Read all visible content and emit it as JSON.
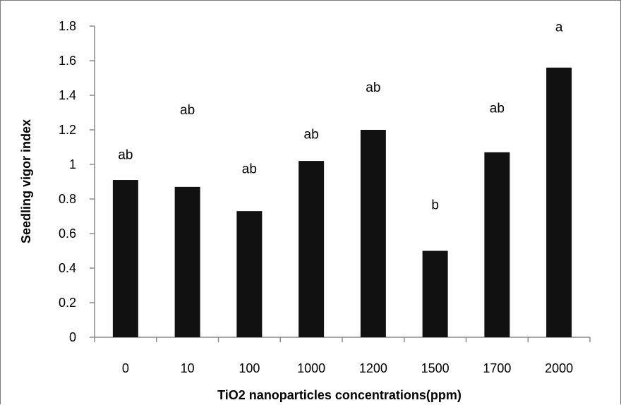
{
  "chart_data": {
    "type": "bar",
    "title": "",
    "xlabel": "TiO2 nanoparticles concentrations(ppm)",
    "ylabel": "Seedling vigor index",
    "categories": [
      "0",
      "10",
      "100",
      "1000",
      "1200",
      "1500",
      "1700",
      "2000"
    ],
    "values": [
      0.91,
      0.87,
      0.73,
      1.02,
      1.2,
      0.5,
      1.07,
      1.56
    ],
    "annotations": [
      "ab",
      "ab",
      "ab",
      "ab",
      "ab",
      "b",
      "ab",
      "a"
    ],
    "annotation_values": [
      1.03,
      1.29,
      0.95,
      1.15,
      1.42,
      0.74,
      1.3,
      1.77
    ],
    "ylim": [
      0,
      1.8
    ],
    "yticks": [
      "0",
      "0.2",
      "0.4",
      "0.6",
      "0.8",
      "1",
      "1.2",
      "1.4",
      "1.6",
      "1.8"
    ],
    "grid": false,
    "legend": "none",
    "bar_color": "#111111"
  }
}
